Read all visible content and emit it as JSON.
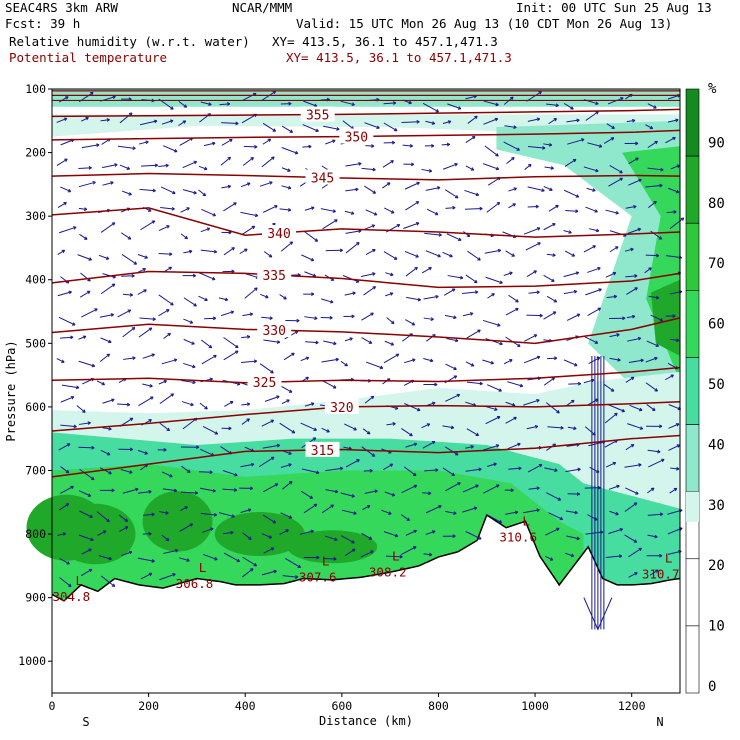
{
  "header": {
    "model": "SEAC4RS  3km ARW",
    "org": "NCAR/MMM",
    "init": "Init: 00 UTC Sun 25 Aug 13",
    "fcst": "Fcst:   39 h",
    "valid": "Valid: 15 UTC Mon 26 Aug 13 (10 CDT Mon 26 Aug 13)",
    "field1": "Relative humidity (w.r.t. water)",
    "field1_xy": "XY= 413.5, 36.1 to 457.1,471.3",
    "field2": "Potential temperature",
    "field2_xy": "XY= 413.5, 36.1 to 457.1,471.3"
  },
  "chart_data": {
    "type": "cross-section",
    "xlabel": "Distance (km)",
    "ylabel": "Pressure (hPa)",
    "xlim": [
      0,
      1300
    ],
    "ylim": [
      1050,
      100
    ],
    "x_ticks": [
      "0",
      "200",
      "400",
      "600",
      "800",
      "1000",
      "1200"
    ],
    "y_ticks": [
      "100",
      "200",
      "300",
      "400",
      "500",
      "600",
      "700",
      "800",
      "900",
      "1000"
    ],
    "x_end_labels": {
      "left": "S",
      "right": "N"
    },
    "colorbar": {
      "unit": "%",
      "ticks": [
        "90",
        "80",
        "70",
        "60",
        "50",
        "40",
        "30",
        "20",
        "10",
        "0"
      ],
      "levels": [
        30,
        40,
        50,
        60,
        70,
        80,
        90,
        100
      ],
      "colors": [
        "#d4f5ec",
        "#8fe8cc",
        "#47dca0",
        "#35d85a",
        "#2fc83c",
        "#1fa82a",
        "#158a1e"
      ]
    },
    "theta_isolines": [
      {
        "label": "355",
        "x": [
          0,
          200,
          400,
          600,
          800,
          1000,
          1200,
          1300
        ],
        "p": [
          143,
          142,
          141,
          140,
          138,
          136,
          134,
          132
        ]
      },
      {
        "label": "350",
        "x": [
          0,
          200,
          400,
          600,
          800,
          1000,
          1200,
          1300
        ],
        "p": [
          180,
          178,
          176,
          175,
          173,
          171,
          168,
          165
        ]
      },
      {
        "label": "345",
        "x": [
          0,
          200,
          400,
          600,
          800,
          1000,
          1200,
          1300
        ],
        "p": [
          237,
          233,
          236,
          240,
          243,
          238,
          236,
          237
        ]
      },
      {
        "label": "340",
        "x": [
          0,
          200,
          400,
          600,
          800,
          1000,
          1200,
          1300
        ],
        "p": [
          298,
          287,
          330,
          320,
          325,
          333,
          328,
          325
        ]
      },
      {
        "label": "335",
        "x": [
          0,
          200,
          400,
          600,
          800,
          1000,
          1200,
          1300
        ],
        "p": [
          405,
          387,
          390,
          398,
          412,
          410,
          402,
          390
        ]
      },
      {
        "label": "330",
        "x": [
          0,
          200,
          400,
          600,
          800,
          1000,
          1200,
          1300
        ],
        "p": [
          483,
          470,
          478,
          482,
          490,
          500,
          478,
          460
        ]
      },
      {
        "label": "325",
        "x": [
          0,
          200,
          400,
          600,
          800,
          1000,
          1200,
          1300
        ],
        "p": [
          558,
          555,
          562,
          558,
          560,
          555,
          545,
          538
        ]
      },
      {
        "label": "320",
        "x": [
          0,
          200,
          400,
          600,
          800,
          1000,
          1200,
          1300
        ],
        "p": [
          638,
          626,
          612,
          600,
          598,
          600,
          595,
          592
        ]
      },
      {
        "label": "315",
        "x": [
          0,
          200,
          400,
          600,
          800,
          1000,
          1200,
          1300
        ],
        "p": [
          710,
          690,
          670,
          667,
          672,
          665,
          650,
          645
        ]
      }
    ],
    "theta_minima": [
      {
        "label": "304.8",
        "x": 40,
        "p": 905
      },
      {
        "label": "306.8",
        "x": 295,
        "p": 885
      },
      {
        "label": "307.6",
        "x": 550,
        "p": 875
      },
      {
        "label": "308.2",
        "x": 695,
        "p": 867
      },
      {
        "label": "310.6",
        "x": 965,
        "p": 812
      },
      {
        "label": "310.7",
        "x": 1260,
        "p": 870
      }
    ],
    "terrain": {
      "x": [
        0,
        25,
        60,
        95,
        130,
        180,
        230,
        300,
        350,
        380,
        430,
        480,
        520,
        580,
        640,
        700,
        760,
        800,
        840,
        880,
        900,
        940,
        980,
        1010,
        1050,
        1080,
        1110,
        1140,
        1170,
        1200,
        1240,
        1280,
        1300
      ],
      "p": [
        895,
        905,
        880,
        890,
        870,
        880,
        885,
        870,
        875,
        880,
        880,
        878,
        870,
        872,
        868,
        860,
        850,
        836,
        828,
        810,
        770,
        790,
        780,
        835,
        880,
        850,
        820,
        870,
        880,
        880,
        878,
        872,
        870
      ]
    }
  }
}
